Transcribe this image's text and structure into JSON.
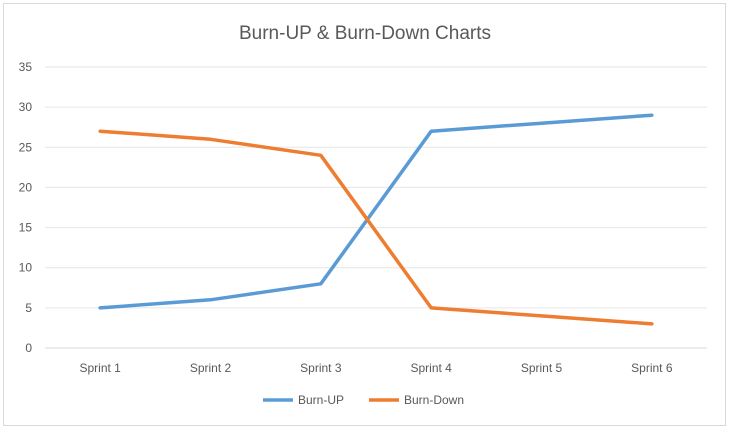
{
  "chart_data": {
    "type": "line",
    "title": "Burn-UP & Burn-Down Charts",
    "categories": [
      "Sprint 1",
      "Sprint 2",
      "Sprint 3",
      "Sprint 4",
      "Sprint 5",
      "Sprint 6"
    ],
    "series": [
      {
        "name": "Burn-UP",
        "values": [
          5,
          6,
          8,
          27,
          28,
          29
        ],
        "color": "#5b9bd5"
      },
      {
        "name": "Burn-Down",
        "values": [
          27,
          26,
          24,
          5,
          4,
          3
        ],
        "color": "#ed7d31"
      }
    ],
    "yticks": [
      "0",
      "5",
      "10",
      "15",
      "20",
      "25",
      "30",
      "35"
    ],
    "ylim": [
      0,
      35
    ],
    "grid": true,
    "legend": "bottom",
    "xlabel": "",
    "ylabel": ""
  }
}
